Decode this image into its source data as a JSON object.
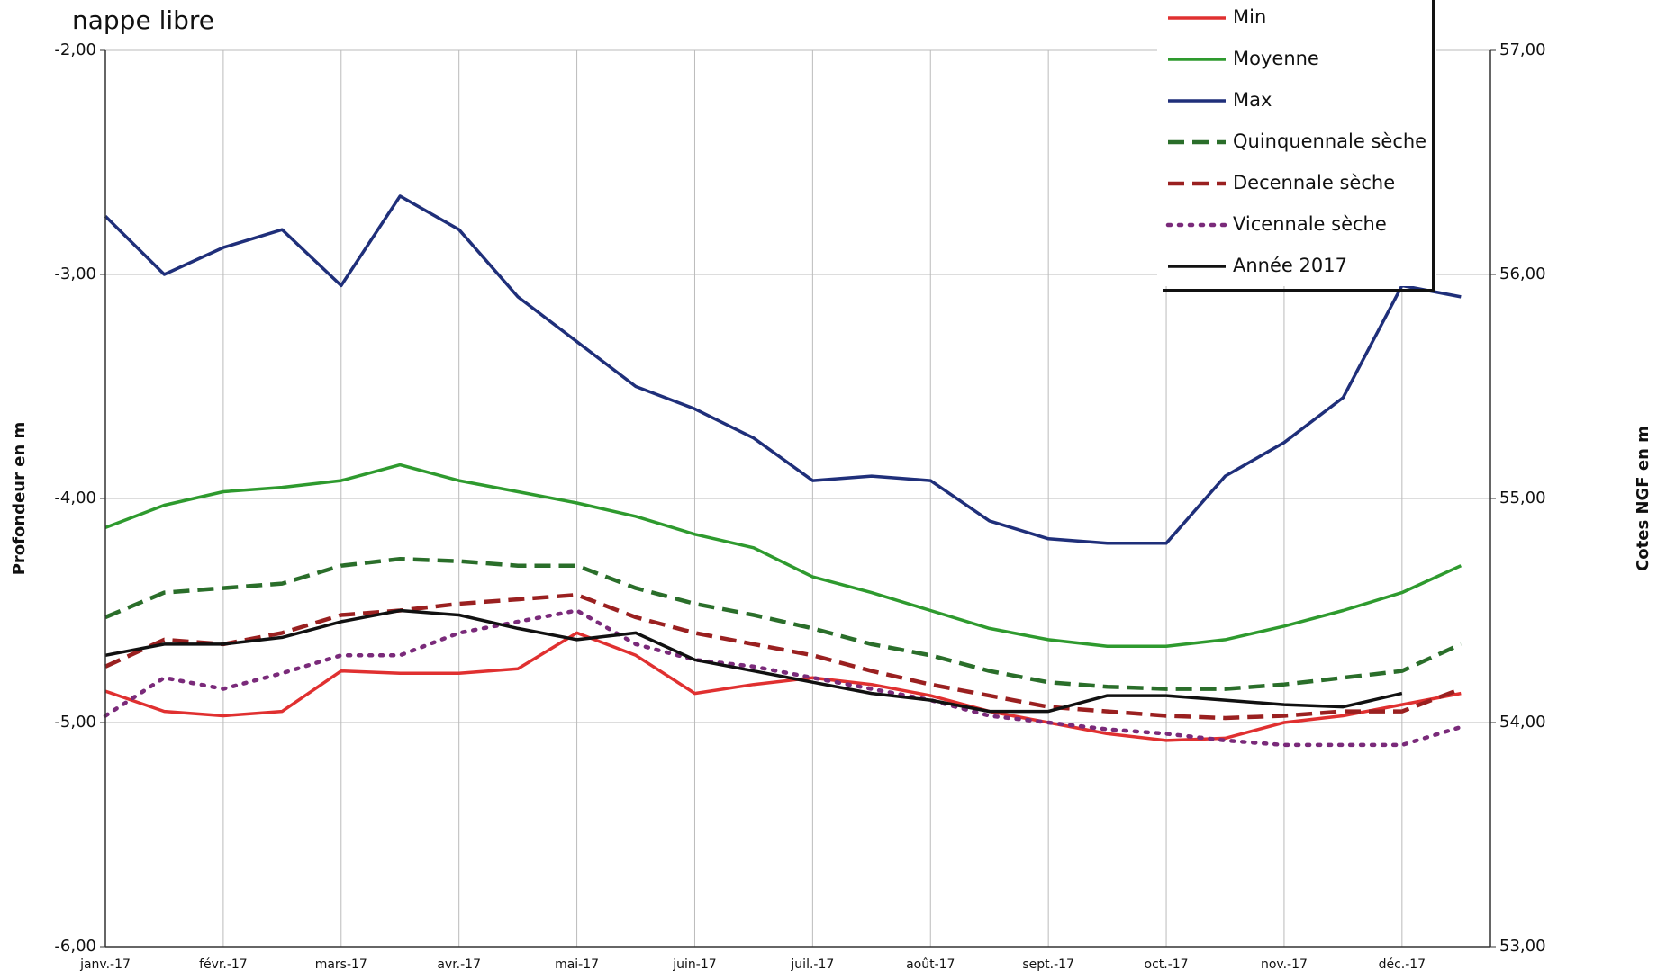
{
  "chart_data": {
    "type": "line",
    "title": "nappe libre",
    "ylabel": "Profondeur en m",
    "y2label": "Cotes NGF en m",
    "categories": [
      "janv.-17",
      null,
      "févr.-17",
      null,
      "mars-17",
      null,
      "avr.-17",
      null,
      "mai-17",
      null,
      "juin-17",
      null,
      "juil.-17",
      null,
      "août-17",
      null,
      "sept.-17",
      null,
      "oct.-17",
      null,
      "nov.-17",
      null,
      "déc.-17",
      null
    ],
    "ylim": [
      -6,
      -2
    ],
    "yticks": [
      {
        "value": -6,
        "label": "-6,00"
      },
      {
        "value": -5,
        "label": "-5,00"
      },
      {
        "value": -4,
        "label": "-4,00"
      },
      {
        "value": -3,
        "label": "-3,00"
      },
      {
        "value": -2,
        "label": "-2,00"
      }
    ],
    "y2lim": [
      53,
      57
    ],
    "y2ticks": [
      {
        "value": 53,
        "label": "53,00"
      },
      {
        "value": 54,
        "label": "54,00"
      },
      {
        "value": 55,
        "label": "55,00"
      },
      {
        "value": 56,
        "label": "56,00"
      },
      {
        "value": 57,
        "label": "57,00"
      }
    ],
    "grid": true,
    "legend": "upper right",
    "series": [
      {
        "name": "Min",
        "color": "#e03030",
        "style": "solid",
        "values": [
          -4.86,
          -4.95,
          -4.97,
          -4.95,
          -4.77,
          -4.78,
          -4.78,
          -4.76,
          -4.6,
          -4.7,
          -4.87,
          -4.83,
          -4.8,
          -4.83,
          -4.88,
          -4.95,
          -5.0,
          -5.05,
          -5.08,
          -5.07,
          -5.0,
          -4.97,
          -4.92,
          -4.87
        ]
      },
      {
        "name": "Moyenne",
        "color": "#2e9a2e",
        "style": "solid",
        "values": [
          -4.13,
          -4.03,
          -3.97,
          -3.95,
          -3.92,
          -3.85,
          -3.92,
          -3.97,
          -4.02,
          -4.08,
          -4.16,
          -4.22,
          -4.35,
          -4.42,
          -4.5,
          -4.58,
          -4.63,
          -4.66,
          -4.66,
          -4.63,
          -4.57,
          -4.5,
          -4.42,
          -4.3
        ]
      },
      {
        "name": "Max",
        "color": "#1f2f7a",
        "style": "solid",
        "values": [
          -2.74,
          -3.0,
          -2.88,
          -2.8,
          -3.05,
          -2.65,
          -2.8,
          -3.1,
          -3.3,
          -3.5,
          -3.6,
          -3.73,
          -3.92,
          -3.9,
          -3.92,
          -4.1,
          -4.18,
          -4.2,
          -4.2,
          -3.9,
          -3.75,
          -3.55,
          -3.05,
          -3.1
        ]
      },
      {
        "name": "Quinquennale sèche",
        "color": "#2a6e2a",
        "style": "dashed",
        "values": [
          -4.53,
          -4.42,
          -4.4,
          -4.38,
          -4.3,
          -4.27,
          -4.28,
          -4.3,
          -4.3,
          -4.4,
          -4.47,
          -4.52,
          -4.58,
          -4.65,
          -4.7,
          -4.77,
          -4.82,
          -4.84,
          -4.85,
          -4.85,
          -4.83,
          -4.8,
          -4.77,
          -4.65
        ]
      },
      {
        "name": "Decennale sèche",
        "color": "#9a2020",
        "style": "dashed",
        "values": [
          -4.75,
          -4.63,
          -4.65,
          -4.6,
          -4.52,
          -4.5,
          -4.47,
          -4.45,
          -4.43,
          -4.53,
          -4.6,
          -4.65,
          -4.7,
          -4.77,
          -4.83,
          -4.88,
          -4.93,
          -4.95,
          -4.97,
          -4.98,
          -4.97,
          -4.95,
          -4.95,
          -4.85
        ]
      },
      {
        "name": "Vicennale sèche",
        "color": "#7a2a7a",
        "style": "dotted",
        "values": [
          -4.97,
          -4.8,
          -4.85,
          -4.78,
          -4.7,
          -4.7,
          -4.6,
          -4.55,
          -4.5,
          -4.65,
          -4.72,
          -4.75,
          -4.8,
          -4.85,
          -4.9,
          -4.97,
          -5.0,
          -5.03,
          -5.05,
          -5.08,
          -5.1,
          -5.1,
          -5.1,
          -5.02
        ]
      },
      {
        "name": "Année 2017",
        "color": "#111111",
        "style": "solid",
        "values": [
          -4.7,
          -4.65,
          -4.65,
          -4.62,
          -4.55,
          -4.5,
          -4.52,
          -4.58,
          -4.63,
          -4.6,
          -4.72,
          -4.77,
          -4.82,
          -4.87,
          -4.9,
          -4.95,
          -4.95,
          -4.88,
          -4.88,
          -4.9,
          -4.92,
          -4.93,
          -4.87,
          null
        ]
      }
    ]
  }
}
